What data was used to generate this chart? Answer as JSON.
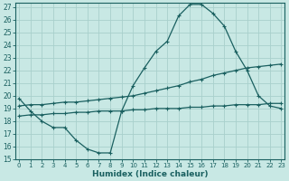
{
  "xlabel": "Humidex (Indice chaleur)",
  "bg_color": "#c8e8e4",
  "grid_color": "#a8d0cc",
  "line_color": "#1a6060",
  "xmin": 0,
  "xmax": 23,
  "ymin": 15,
  "ymax": 27,
  "line1_x": [
    0,
    1,
    2,
    3,
    4,
    5,
    6,
    7,
    8,
    9,
    10,
    11,
    12,
    13,
    14,
    15,
    16,
    17,
    18,
    19,
    20,
    21,
    22,
    23
  ],
  "line1_y": [
    19.8,
    18.8,
    18.0,
    17.5,
    17.5,
    16.5,
    15.8,
    15.5,
    15.5,
    18.8,
    20.8,
    22.2,
    23.5,
    24.3,
    26.3,
    27.2,
    27.2,
    26.5,
    25.5,
    23.5,
    22.0,
    20.0,
    19.2,
    19.0
  ],
  "line2_x": [
    0,
    1,
    2,
    3,
    4,
    5,
    6,
    7,
    8,
    9,
    10,
    11,
    12,
    13,
    14,
    15,
    16,
    17,
    18,
    19,
    20,
    21,
    22,
    23
  ],
  "line2_y": [
    19.2,
    19.3,
    19.3,
    19.4,
    19.5,
    19.5,
    19.6,
    19.7,
    19.8,
    19.9,
    20.0,
    20.2,
    20.4,
    20.6,
    20.8,
    21.1,
    21.3,
    21.6,
    21.8,
    22.0,
    22.2,
    22.3,
    22.4,
    22.5
  ],
  "line3_x": [
    0,
    1,
    2,
    3,
    4,
    5,
    6,
    7,
    8,
    9,
    10,
    11,
    12,
    13,
    14,
    15,
    16,
    17,
    18,
    19,
    20,
    21,
    22,
    23
  ],
  "line3_y": [
    18.4,
    18.5,
    18.5,
    18.6,
    18.6,
    18.7,
    18.7,
    18.8,
    18.8,
    18.8,
    18.9,
    18.9,
    19.0,
    19.0,
    19.0,
    19.1,
    19.1,
    19.2,
    19.2,
    19.3,
    19.3,
    19.3,
    19.4,
    19.4
  ]
}
